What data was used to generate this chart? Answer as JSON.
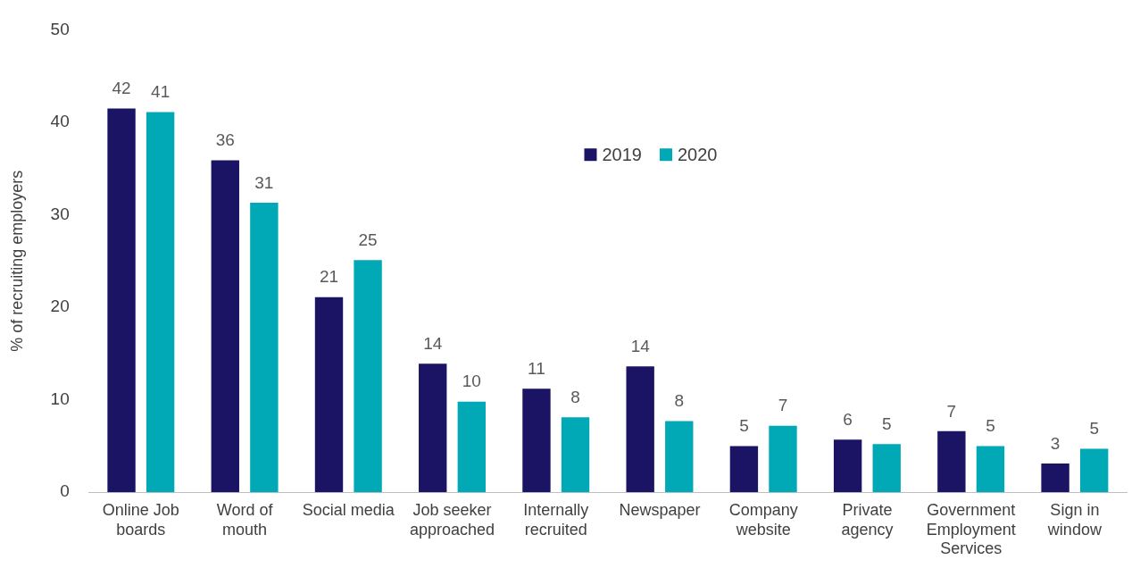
{
  "chart_data": {
    "type": "bar",
    "ylabel": "% of recruiting employers",
    "categories": [
      "Online Job boards",
      "Word of mouth",
      "Social media",
      "Job seeker approached",
      "Internally recruited",
      "Newspaper",
      "Company website",
      "Private agency",
      "Government Employment Services",
      "Sign in window"
    ],
    "series": [
      {
        "name": "2019",
        "color": "#1b1464",
        "values": [
          41.5,
          35.9,
          21.1,
          13.9,
          11.2,
          13.6,
          5.0,
          5.7,
          6.6,
          3.1
        ],
        "value_labels": [
          "42",
          "36",
          "21",
          "14",
          "11",
          "14",
          "5",
          "6",
          "7",
          "3"
        ]
      },
      {
        "name": "2020",
        "color": "#00a9b5",
        "values": [
          41.1,
          31.3,
          25.1,
          9.8,
          8.1,
          7.7,
          7.2,
          5.2,
          5.0,
          4.7
        ],
        "value_labels": [
          "41",
          "31",
          "25",
          "10",
          "8",
          "8",
          "7",
          "5",
          "5",
          "5"
        ]
      }
    ],
    "ylim": [
      0,
      50
    ],
    "yticks": [
      0,
      10,
      20,
      30,
      40,
      50
    ],
    "grid": false,
    "legend": "top"
  }
}
